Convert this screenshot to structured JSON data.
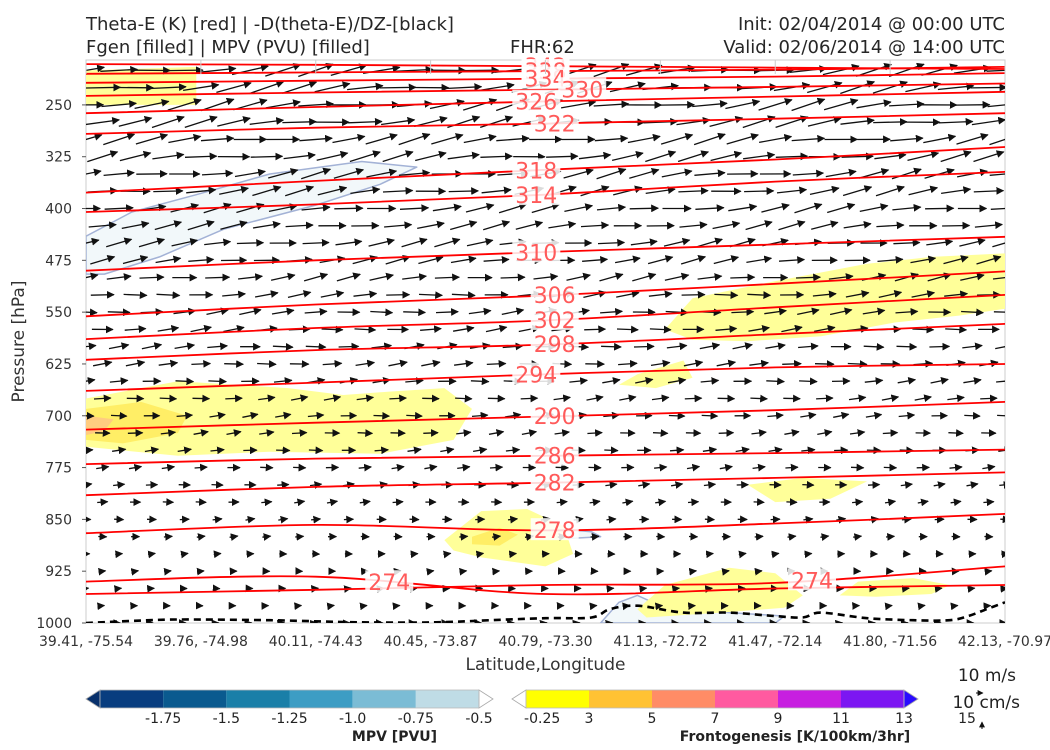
{
  "header": {
    "title_line1": "Theta-E (K) [red] | -D(theta-E)/DZ-[black]",
    "title_line2": "Fgen [filled] | MPV (PVU) [filled]",
    "fhr": "FHR:62",
    "init": "Init: 02/04/2014 @ 00:00 UTC",
    "valid": "Valid: 02/06/2014 @ 14:00 UTC"
  },
  "chart_data": {
    "type": "cross-section",
    "xlabel": "Latitude,Longitude",
    "ylabel": "Pressure [hPa]",
    "x_ticks": [
      "39.41, -75.54",
      "39.76, -74.98",
      "40.11, -74.43",
      "40.45, -73.87",
      "40.79, -73.30",
      "41.13, -72.72",
      "41.47, -72.14",
      "41.80, -71.56",
      "42.13, -70.97"
    ],
    "y_ticks": [
      250,
      325,
      400,
      475,
      550,
      625,
      700,
      775,
      850,
      925,
      1000
    ],
    "ylim": [
      1000,
      185
    ],
    "theta_e_color": "#ff0000",
    "theta_e_contours": [
      {
        "value": 342,
        "label": "342",
        "label_x": 0.5,
        "y": [
          191,
          192,
          194,
          196,
          198
        ]
      },
      {
        "value": 338,
        "label": "338",
        "label_x": 0.5,
        "y": [
          205,
          203,
          201,
          199,
          195
        ]
      },
      {
        "value": 334,
        "label": "334",
        "label_x": 0.5,
        "y": [
          218,
          215,
          212,
          209,
          204
        ]
      },
      {
        "value": 330,
        "label": "330",
        "label_x": 0.54,
        "y": [
          237,
          232,
          228,
          224,
          219
        ]
      },
      {
        "value": 326,
        "label": "326",
        "label_x": 0.49,
        "y": [
          262,
          253,
          245,
          238,
          231
        ]
      },
      {
        "value": 322,
        "label": "322",
        "label_x": 0.51,
        "y": [
          292,
          283,
          277,
          270,
          262
        ]
      },
      {
        "value": 318,
        "label": "318",
        "label_x": 0.49,
        "y": [
          377,
          360,
          344,
          329,
          311
        ]
      },
      {
        "value": 314,
        "label": "314",
        "label_x": 0.49,
        "y": [
          405,
          394,
          380,
          361,
          347
        ]
      },
      {
        "value": 310,
        "label": "310",
        "label_x": 0.49,
        "y": [
          490,
          475,
          463,
          452,
          441
        ]
      },
      {
        "value": 306,
        "label": "306",
        "label_x": 0.51,
        "y": [
          556,
          539,
          526,
          509,
          491
        ]
      },
      {
        "value": 302,
        "label": "302",
        "label_x": 0.51,
        "y": [
          589,
          573,
          562,
          543,
          525
        ]
      },
      {
        "value": 298,
        "label": "298",
        "label_x": 0.51,
        "y": [
          619,
          605,
          597,
          582,
          567
        ]
      },
      {
        "value": 294,
        "label": "294",
        "label_x": 0.49,
        "y": [
          664,
          652,
          640,
          630,
          625
        ]
      },
      {
        "value": 290,
        "label": "290",
        "label_x": 0.51,
        "y": [
          720,
          710,
          701,
          692,
          680
        ]
      },
      {
        "value": 286,
        "label": "286",
        "label_x": 0.51,
        "y": [
          770,
          762,
          758,
          754,
          749
        ]
      },
      {
        "value": 282,
        "label": "282",
        "label_x": 0.51,
        "y": [
          815,
          803,
          797,
          790,
          782
        ]
      },
      {
        "value": 278,
        "label": "278",
        "label_x": 0.51,
        "y": [
          870,
          858,
          866,
          856,
          842
        ]
      },
      {
        "value": 274,
        "label": "274",
        "label_x": 0.33,
        "y": [
          940,
          933,
          958,
          950,
          945
        ]
      },
      {
        "value": 274,
        "label": "274",
        "label_x": 0.79,
        "y": [
          958,
          952,
          945,
          942,
          918
        ]
      }
    ],
    "fgen_regions": [
      {
        "level": 3,
        "x": [
          0.0,
          0.0,
          0.1,
          0.22,
          0.28,
          0.33,
          0.39,
          0.42,
          0.4,
          0.32,
          0.2,
          0.1
        ],
        "y": [
          745,
          675,
          650,
          660,
          670,
          665,
          660,
          690,
          735,
          755,
          752,
          758
        ]
      },
      {
        "level": 5,
        "x": [
          0.0,
          0.0,
          0.06,
          0.11,
          0.1,
          0.04
        ],
        "y": [
          735,
          690,
          680,
          700,
          725,
          740
        ]
      },
      {
        "level": 7,
        "x": [
          0.0,
          0.0,
          0.03,
          0.02
        ],
        "y": [
          728,
          700,
          705,
          722
        ]
      },
      {
        "level": 3,
        "x": [
          0.63,
          0.66,
          0.75,
          0.85,
          0.92,
          1.0,
          1.0,
          0.95,
          0.88,
          0.8,
          0.72,
          0.66
        ],
        "y": [
          575,
          530,
          505,
          480,
          470,
          465,
          545,
          555,
          565,
          585,
          592,
          590
        ]
      },
      {
        "level": 3,
        "x": [
          0.0,
          0.0,
          0.12,
          0.12
        ],
        "y": [
          250,
          200,
          195,
          250
        ]
      },
      {
        "level": 3,
        "x": [
          0.39,
          0.43,
          0.48,
          0.52,
          0.53,
          0.5,
          0.43,
          0.4
        ],
        "y": [
          880,
          838,
          835,
          860,
          900,
          918,
          905,
          895
        ]
      },
      {
        "level": 5,
        "x": [
          0.42,
          0.45,
          0.47,
          0.45,
          0.42
        ],
        "y": [
          875,
          862,
          872,
          888,
          886
        ]
      },
      {
        "level": 3,
        "x": [
          0.6,
          0.63,
          0.7,
          0.75,
          0.78,
          0.76,
          0.69,
          0.61
        ],
        "y": [
          980,
          945,
          920,
          928,
          960,
          978,
          985,
          992
        ]
      },
      {
        "level": 3,
        "x": [
          0.82,
          0.84,
          0.9,
          0.94,
          0.92,
          0.86
        ],
        "y": [
          960,
          940,
          935,
          945,
          958,
          962
        ]
      },
      {
        "level": 3,
        "x": [
          0.72,
          0.78,
          0.85,
          0.81,
          0.75
        ],
        "y": [
          800,
          790,
          795,
          820,
          825
        ]
      },
      {
        "level": 3,
        "x": [
          0.6,
          0.65,
          0.66,
          0.62,
          0.58
        ],
        "y": [
          640,
          620,
          645,
          660,
          655
        ]
      }
    ],
    "mpv_regions": [
      {
        "level": -0.25,
        "x": [
          0.0,
          0.0,
          0.05,
          0.12,
          0.2,
          0.3,
          0.36,
          0.32,
          0.25,
          0.15,
          0.08,
          0.02
        ],
        "y": [
          495,
          440,
          405,
          380,
          350,
          332,
          340,
          365,
          395,
          430,
          470,
          495
        ]
      },
      {
        "level": -0.25,
        "x": [
          0.56,
          0.58,
          0.6,
          0.63,
          0.7,
          0.76,
          0.75,
          0.7,
          0.6
        ],
        "y": [
          1000,
          970,
          960,
          978,
          985,
          990,
          1000,
          1000,
          1000
        ]
      },
      {
        "level": -0.25,
        "x": [
          0.46,
          0.5,
          0.55,
          0.56,
          0.52,
          0.46
        ],
        "y": [
          868,
          862,
          868,
          875,
          878,
          875
        ]
      }
    ],
    "ddz_dashed": {
      "x": [
        0.0,
        0.05,
        0.1,
        0.2,
        0.3,
        0.38,
        0.44,
        0.5,
        0.55,
        0.57,
        0.6,
        0.65,
        0.7,
        0.75,
        0.78,
        0.8,
        0.85,
        0.9,
        0.94,
        0.96,
        0.98,
        1.0
      ],
      "y": [
        1000,
        997,
        995,
        996,
        999,
        999,
        996,
        993,
        992,
        980,
        975,
        985,
        985,
        990,
        992,
        985,
        993,
        996,
        996,
        990,
        980,
        970
      ]
    },
    "mpv_colorbar": {
      "title": "MPV [PVU]",
      "labels": [
        "-1.75",
        "-1.5",
        "-1.25",
        "-1.0",
        "-0.75",
        "-0.5",
        "-0.25"
      ],
      "colors": [
        "#08306b",
        "#083d7f",
        "#0a5a8f",
        "#1a7fa8",
        "#3d9dc4",
        "#7bbcd5",
        "#bfdce6",
        "#ffffff"
      ]
    },
    "fgen_colorbar": {
      "title": "Frontogenesis [K/100km/3hr]",
      "labels": [
        "3",
        "5",
        "7",
        "9",
        "11",
        "13",
        "15"
      ],
      "colors": [
        "#ffffff",
        "#ffff00",
        "#ffc233",
        "#ff8c66",
        "#ff5aa0",
        "#c71fe0",
        "#7c16f2",
        "#2a0bff"
      ],
      "fill_colors": {
        "3": "#ffff99",
        "5": "#ffee66",
        "7": "#ffcc80"
      }
    },
    "vector_reference": {
      "u_label": "10 m/s",
      "w_label": "10 cm/s"
    }
  }
}
